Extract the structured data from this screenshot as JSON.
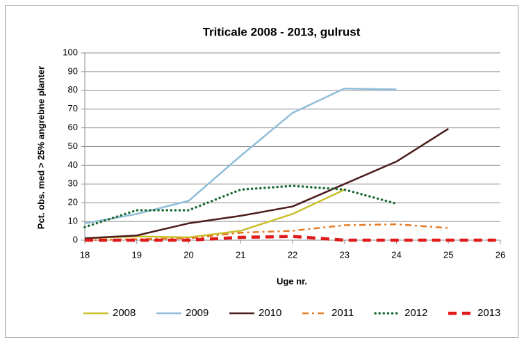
{
  "chart_data": {
    "type": "line",
    "title": "Triticale 2008 - 2013, gulrust",
    "xlabel": "Uge nr.",
    "ylabel": "Pct. obs. med > 25% angrebne planter",
    "x": [
      18,
      19,
      20,
      21,
      22,
      23,
      24,
      25,
      26
    ],
    "xlim": [
      18,
      26
    ],
    "xticks": [
      18,
      19,
      20,
      21,
      22,
      23,
      24,
      25,
      26
    ],
    "ylim": [
      0,
      100
    ],
    "yticks": [
      0,
      10,
      20,
      30,
      40,
      50,
      60,
      70,
      80,
      90,
      100
    ],
    "grid": true,
    "legend": "bottom",
    "series": [
      {
        "name": "2008",
        "color": "#c9bf2e",
        "style": "solid",
        "values": [
          1,
          2,
          1.5,
          5,
          14,
          27,
          null,
          null,
          null
        ]
      },
      {
        "name": "2009",
        "color": "#8fbdd9",
        "style": "solid",
        "values": [
          9,
          14,
          21,
          45,
          68,
          81,
          80.5,
          null,
          null
        ]
      },
      {
        "name": "2010",
        "color": "#4b1c1c",
        "style": "solid",
        "values": [
          1,
          2.5,
          9,
          13,
          18,
          30,
          42,
          59.5,
          null
        ]
      },
      {
        "name": "2011",
        "color": "#e57a24",
        "style": "dashdot",
        "values": [
          0,
          0.5,
          1,
          4,
          5,
          8,
          8.5,
          6.5,
          null
        ]
      },
      {
        "name": "2012",
        "color": "#1b6b32",
        "style": "dotted",
        "values": [
          7,
          16,
          16,
          27,
          29,
          27,
          19.5,
          null,
          null
        ]
      },
      {
        "name": "2013",
        "color": "#e01a1a",
        "style": "dashed",
        "values": [
          0,
          0,
          0,
          1.5,
          2,
          0,
          0,
          0,
          0
        ]
      }
    ]
  }
}
